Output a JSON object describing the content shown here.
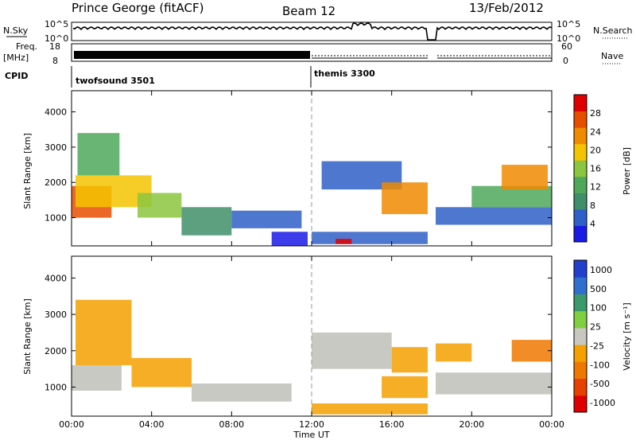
{
  "header": {
    "title": "Prince George (fitACF)",
    "beam": "Beam 12",
    "date": "13/Feb/2012"
  },
  "strip_labels": {
    "nsky": "N.Sky",
    "nsky_ticks": [
      "10^5",
      "10^0"
    ],
    "nsearch": "N.Search",
    "freq_top": "Freq.",
    "freq_unit": "[MHz]",
    "freq_ticks": [
      "18",
      "8"
    ],
    "nave": "Nave",
    "nave_ticks": [
      "60",
      "0"
    ],
    "cpid": "CPID",
    "program_1": "twofsound 3501",
    "program_2": "themis 3300"
  },
  "colors": {
    "power_scale": [
      "#1a1ae6",
      "#2f5fc8",
      "#3f8f6a",
      "#4fa85a",
      "#8cc63f",
      "#f5c400",
      "#f08a00",
      "#e84e00",
      "#e00000"
    ],
    "velocity_scale": [
      "#1f3fcc",
      "#2f6fcf",
      "#3a9a6a",
      "#7fcf3f",
      "#c8c8c0",
      "#f5a000",
      "#f07800",
      "#e84000",
      "#e00000"
    ],
    "ground_scatter": "#c0c0b8"
  },
  "chart_data": [
    {
      "type": "heatmap",
      "name": "power",
      "ylabel": "Slant Range [km]",
      "yticks": [
        "1000",
        "2000",
        "3000",
        "4000"
      ],
      "ylim": [
        200,
        4600
      ],
      "colorbar_label": "Power [dB]",
      "colorbar_ticks": [
        "4",
        "8",
        "12",
        "16",
        "20",
        "24",
        "28"
      ],
      "cells": [
        {
          "t": [
            0.0,
            2.0
          ],
          "r": [
            1000,
            1900
          ],
          "v": 24
        },
        {
          "t": [
            0.2,
            4.0
          ],
          "r": [
            1300,
            2200
          ],
          "v": 18
        },
        {
          "t": [
            0.3,
            2.4
          ],
          "r": [
            2200,
            3400
          ],
          "v": 12
        },
        {
          "t": [
            3.3,
            5.5
          ],
          "r": [
            1000,
            1700
          ],
          "v": 16
        },
        {
          "t": [
            5.5,
            8.0
          ],
          "r": [
            500,
            1300
          ],
          "v": 10
        },
        {
          "t": [
            8.0,
            11.5
          ],
          "r": [
            700,
            1200
          ],
          "v": 6
        },
        {
          "t": [
            10.0,
            11.8
          ],
          "r": [
            200,
            600
          ],
          "v": 4
        },
        {
          "t": [
            12.0,
            18.0
          ],
          "r": [
            250,
            600
          ],
          "v": 6
        },
        {
          "t": [
            13.2,
            14.0
          ],
          "r": [
            250,
            400
          ],
          "v": 28
        },
        {
          "t": [
            12.5,
            16.5
          ],
          "r": [
            1800,
            2600
          ],
          "v": 6
        },
        {
          "t": [
            15.5,
            17.8
          ],
          "r": [
            1100,
            2000
          ],
          "v": 22
        },
        {
          "t": [
            18.2,
            24.0
          ],
          "r": [
            800,
            1300
          ],
          "v": 8
        },
        {
          "t": [
            20.0,
            24.0
          ],
          "r": [
            1300,
            1900
          ],
          "v": 14
        },
        {
          "t": [
            21.5,
            23.8
          ],
          "r": [
            1800,
            2500
          ],
          "v": 22
        }
      ]
    },
    {
      "type": "heatmap",
      "name": "velocity",
      "ylabel": "Slant Range [km]",
      "yticks": [
        "1000",
        "2000",
        "3000",
        "4000"
      ],
      "ylim": [
        200,
        4600
      ],
      "colorbar_label": "Velocity [m s⁻¹]",
      "colorbar_ticks": [
        "1000",
        "500",
        "100",
        "25",
        "-25",
        "-100",
        "-500",
        "-1000"
      ],
      "cells": [
        {
          "t": [
            0.0,
            2.5
          ],
          "r": [
            900,
            1600
          ],
          "v": 0
        },
        {
          "t": [
            0.2,
            3.0
          ],
          "r": [
            1600,
            3400
          ],
          "v": -150
        },
        {
          "t": [
            3.0,
            6.0
          ],
          "r": [
            1000,
            1800
          ],
          "v": -200
        },
        {
          "t": [
            6.0,
            11.0
          ],
          "r": [
            600,
            1100
          ],
          "v": 0
        },
        {
          "t": [
            12.0,
            16.0
          ],
          "r": [
            1500,
            2500
          ],
          "v": 0
        },
        {
          "t": [
            15.5,
            17.8
          ],
          "r": [
            700,
            1300
          ],
          "v": -300
        },
        {
          "t": [
            16.0,
            17.8
          ],
          "r": [
            1400,
            2100
          ],
          "v": -150
        },
        {
          "t": [
            12.0,
            18.0
          ],
          "r": [
            250,
            550
          ],
          "v": -100
        },
        {
          "t": [
            18.2,
            20.0
          ],
          "r": [
            1700,
            2200
          ],
          "v": -300
        },
        {
          "t": [
            18.2,
            24.0
          ],
          "r": [
            800,
            1400
          ],
          "v": 0
        },
        {
          "t": [
            22.0,
            24.0
          ],
          "r": [
            1700,
            2300
          ],
          "v": -400
        }
      ]
    }
  ],
  "x_axis": {
    "xlim": [
      0,
      24
    ],
    "ticks": [
      "00:00",
      "04:00",
      "08:00",
      "12:00",
      "16:00",
      "20:00",
      "00:00"
    ],
    "label": "Time UT",
    "program_change_hour": 12.0,
    "data_gaps_hours": [
      [
        17.8,
        18.2
      ]
    ]
  }
}
